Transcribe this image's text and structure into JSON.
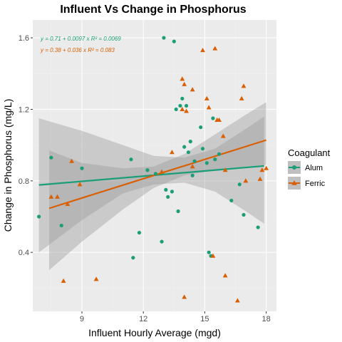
{
  "chart_data": {
    "type": "scatter",
    "title": "Influent Vs Change in Phosphorus",
    "xlabel": "Influent Hourly Average (mgd)",
    "ylabel": "Change in Phosphorus (mg/L)",
    "xlim": [
      6.6,
      18.5
    ],
    "ylim": [
      0.07,
      1.7
    ],
    "x_ticks": [
      9,
      12,
      15,
      18
    ],
    "y_ticks": [
      0.4,
      0.8,
      1.2,
      1.6
    ],
    "x_tick_labels": [
      "9",
      "12",
      "15",
      "18"
    ],
    "y_tick_labels": [
      "0.4",
      "0.8",
      "1.2",
      "1.6"
    ],
    "grid": true,
    "legend": {
      "title": "Coagulant",
      "position": "right"
    },
    "series": [
      {
        "name": "Alum",
        "color": "#1b9e77",
        "marker": "circle",
        "equation": "y = 0.71 + 0.0097 x   R² = 0.0069",
        "fit": {
          "intercept": 0.71,
          "slope": 0.0097,
          "x_range": [
            6.9,
            17.9
          ]
        },
        "ci_band": [
          {
            "x": 6.9,
            "lower": 0.4,
            "upper": 1.15
          },
          {
            "x": 9.0,
            "lower": 0.58,
            "upper": 1.08
          },
          {
            "x": 11.0,
            "lower": 0.73,
            "upper": 1.0
          },
          {
            "x": 12.5,
            "lower": 0.78,
            "upper": 0.94
          },
          {
            "x": 14.0,
            "lower": 0.79,
            "upper": 0.93
          },
          {
            "x": 15.5,
            "lower": 0.74,
            "upper": 0.98
          },
          {
            "x": 17.0,
            "lower": 0.63,
            "upper": 1.09
          },
          {
            "x": 17.9,
            "lower": 0.56,
            "upper": 1.16
          }
        ],
        "points": [
          {
            "x": 6.9,
            "y": 0.6
          },
          {
            "x": 7.5,
            "y": 0.93
          },
          {
            "x": 8.0,
            "y": 0.55
          },
          {
            "x": 9.0,
            "y": 0.87
          },
          {
            "x": 11.4,
            "y": 0.92
          },
          {
            "x": 11.5,
            "y": 0.37
          },
          {
            "x": 11.8,
            "y": 0.51
          },
          {
            "x": 12.2,
            "y": 0.86
          },
          {
            "x": 12.6,
            "y": 0.84
          },
          {
            "x": 12.9,
            "y": 0.46
          },
          {
            "x": 13.0,
            "y": 1.6
          },
          {
            "x": 13.1,
            "y": 0.75
          },
          {
            "x": 13.2,
            "y": 0.71
          },
          {
            "x": 13.4,
            "y": 0.74
          },
          {
            "x": 13.5,
            "y": 1.58
          },
          {
            "x": 13.6,
            "y": 1.2
          },
          {
            "x": 13.7,
            "y": 0.63
          },
          {
            "x": 13.8,
            "y": 1.22
          },
          {
            "x": 13.9,
            "y": 1.26
          },
          {
            "x": 14.0,
            "y": 0.99
          },
          {
            "x": 14.1,
            "y": 1.22
          },
          {
            "x": 14.2,
            "y": 0.96
          },
          {
            "x": 14.3,
            "y": 1.02
          },
          {
            "x": 14.4,
            "y": 0.83
          },
          {
            "x": 14.5,
            "y": 0.91
          },
          {
            "x": 14.8,
            "y": 1.1
          },
          {
            "x": 14.9,
            "y": 0.98
          },
          {
            "x": 15.1,
            "y": 0.9
          },
          {
            "x": 15.2,
            "y": 0.4
          },
          {
            "x": 15.3,
            "y": 0.38
          },
          {
            "x": 15.4,
            "y": 1.15
          },
          {
            "x": 15.5,
            "y": 0.92
          },
          {
            "x": 15.7,
            "y": 0.95
          },
          {
            "x": 16.3,
            "y": 0.69
          },
          {
            "x": 16.7,
            "y": 0.78
          },
          {
            "x": 16.9,
            "y": 0.61
          },
          {
            "x": 17.6,
            "y": 0.54
          }
        ]
      },
      {
        "name": "Ferric",
        "color": "#d95f02",
        "marker": "triangle",
        "equation": "y = 0.38 + 0.036 x   R² = 0.083",
        "fit": {
          "intercept": 0.38,
          "slope": 0.036,
          "x_range": [
            7.4,
            18.0
          ]
        },
        "ci_band": [
          {
            "x": 7.4,
            "lower": 0.3,
            "upper": 0.97
          },
          {
            "x": 9.0,
            "lower": 0.46,
            "upper": 0.9
          },
          {
            "x": 11.0,
            "lower": 0.64,
            "upper": 0.87
          },
          {
            "x": 12.5,
            "lower": 0.76,
            "upper": 0.88
          },
          {
            "x": 14.0,
            "lower": 0.83,
            "upper": 0.95
          },
          {
            "x": 15.5,
            "lower": 0.86,
            "upper": 1.06
          },
          {
            "x": 17.0,
            "lower": 0.88,
            "upper": 1.17
          },
          {
            "x": 18.0,
            "lower": 0.89,
            "upper": 1.24
          }
        ],
        "points": [
          {
            "x": 7.5,
            "y": 0.71
          },
          {
            "x": 7.8,
            "y": 0.71
          },
          {
            "x": 8.1,
            "y": 0.24
          },
          {
            "x": 8.3,
            "y": 0.67
          },
          {
            "x": 8.5,
            "y": 0.91
          },
          {
            "x": 8.9,
            "y": 0.78
          },
          {
            "x": 9.7,
            "y": 0.25
          },
          {
            "x": 12.9,
            "y": 0.85
          },
          {
            "x": 13.4,
            "y": 0.96
          },
          {
            "x": 13.9,
            "y": 1.37
          },
          {
            "x": 13.9,
            "y": 1.2
          },
          {
            "x": 14.0,
            "y": 0.15
          },
          {
            "x": 14.0,
            "y": 1.34
          },
          {
            "x": 14.1,
            "y": 1.19
          },
          {
            "x": 14.4,
            "y": 1.31
          },
          {
            "x": 14.4,
            "y": 0.88
          },
          {
            "x": 14.9,
            "y": 1.53
          },
          {
            "x": 15.1,
            "y": 1.26
          },
          {
            "x": 15.2,
            "y": 1.21
          },
          {
            "x": 15.4,
            "y": 0.38
          },
          {
            "x": 15.5,
            "y": 1.54
          },
          {
            "x": 15.6,
            "y": 1.14
          },
          {
            "x": 15.7,
            "y": 1.14
          },
          {
            "x": 15.9,
            "y": 1.05
          },
          {
            "x": 16.0,
            "y": 0.27
          },
          {
            "x": 16.0,
            "y": 0.86
          },
          {
            "x": 16.6,
            "y": 0.13
          },
          {
            "x": 16.8,
            "y": 1.26
          },
          {
            "x": 16.9,
            "y": 1.33
          },
          {
            "x": 17.0,
            "y": 0.8
          },
          {
            "x": 17.7,
            "y": 0.81
          },
          {
            "x": 17.8,
            "y": 0.86
          },
          {
            "x": 18.0,
            "y": 0.87
          }
        ]
      }
    ]
  }
}
